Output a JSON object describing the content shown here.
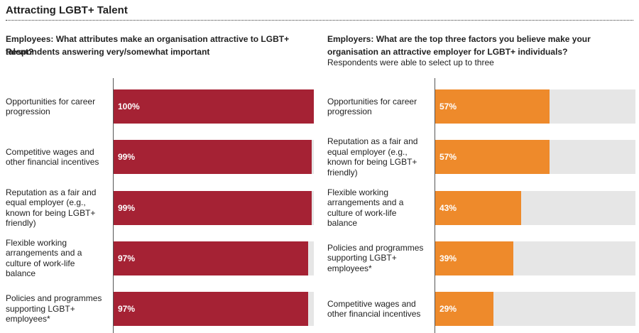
{
  "title": "Attracting LGBT+ Talent",
  "chart_data": [
    {
      "type": "bar",
      "orientation": "horizontal",
      "title": "Employees: What attributes make an organisation attractive to LGBT+ talent?",
      "subtitle": "Respondents answering very/somewhat important",
      "categories": [
        "Opportunities for career progression",
        "Competitive wages and other financial incentives",
        "Reputation as a fair and equal employer (e.g., known for being LGBT+ friendly)",
        "Flexible working arrangements and a culture of work-life balance",
        "Policies and programmes supporting LGBT+ employees*"
      ],
      "values": [
        100,
        99,
        99,
        97,
        97
      ],
      "value_labels": [
        "100%",
        "99%",
        "99%",
        "97%",
        "97%"
      ],
      "color": "#a52234",
      "xlim": [
        0,
        100
      ]
    },
    {
      "type": "bar",
      "orientation": "horizontal",
      "title": "Employers: What are the top three factors you believe make your organisation an attractive employer for LGBT+ individuals?",
      "subtitle": "Respondents were able to select up to three",
      "categories": [
        "Opportunities for career progression",
        "Reputation as a fair and equal employer (e.g., known for being LGBT+ friendly)",
        "Flexible working arrangements and a culture of work-life balance",
        "Policies and programmes supporting LGBT+ employees*",
        "Competitive wages and other financial incentives"
      ],
      "values": [
        57,
        57,
        43,
        39,
        29
      ],
      "value_labels": [
        "57%",
        "57%",
        "43%",
        "39%",
        "29%"
      ],
      "color": "#ee8a2b",
      "xlim": [
        0,
        100
      ]
    }
  ]
}
